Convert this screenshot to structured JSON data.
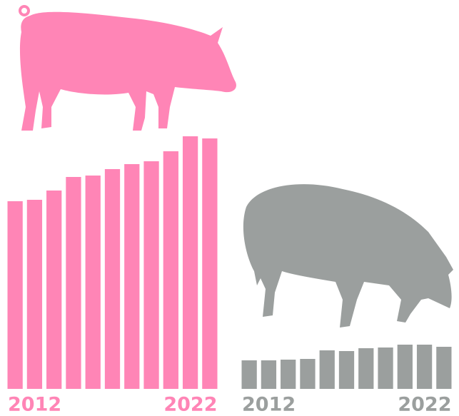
{
  "chart_data": [
    {
      "type": "bar",
      "color": "#ff85b6",
      "categories": [
        "2012",
        null,
        null,
        null,
        null,
        null,
        null,
        null,
        null,
        null,
        "2022"
      ],
      "values": [
        263,
        265,
        278,
        297,
        299,
        308,
        315,
        319,
        333,
        354,
        351
      ],
      "ylim": [
        0,
        360
      ]
    },
    {
      "type": "bar",
      "color": "#9b9f9e",
      "categories": [
        "2012",
        null,
        null,
        null,
        null,
        null,
        null,
        null,
        null,
        null,
        "2022"
      ],
      "values": [
        40,
        40,
        41,
        42,
        54,
        53,
        57,
        58,
        62,
        62,
        59
      ],
      "ylim": [
        0,
        360
      ]
    }
  ]
}
